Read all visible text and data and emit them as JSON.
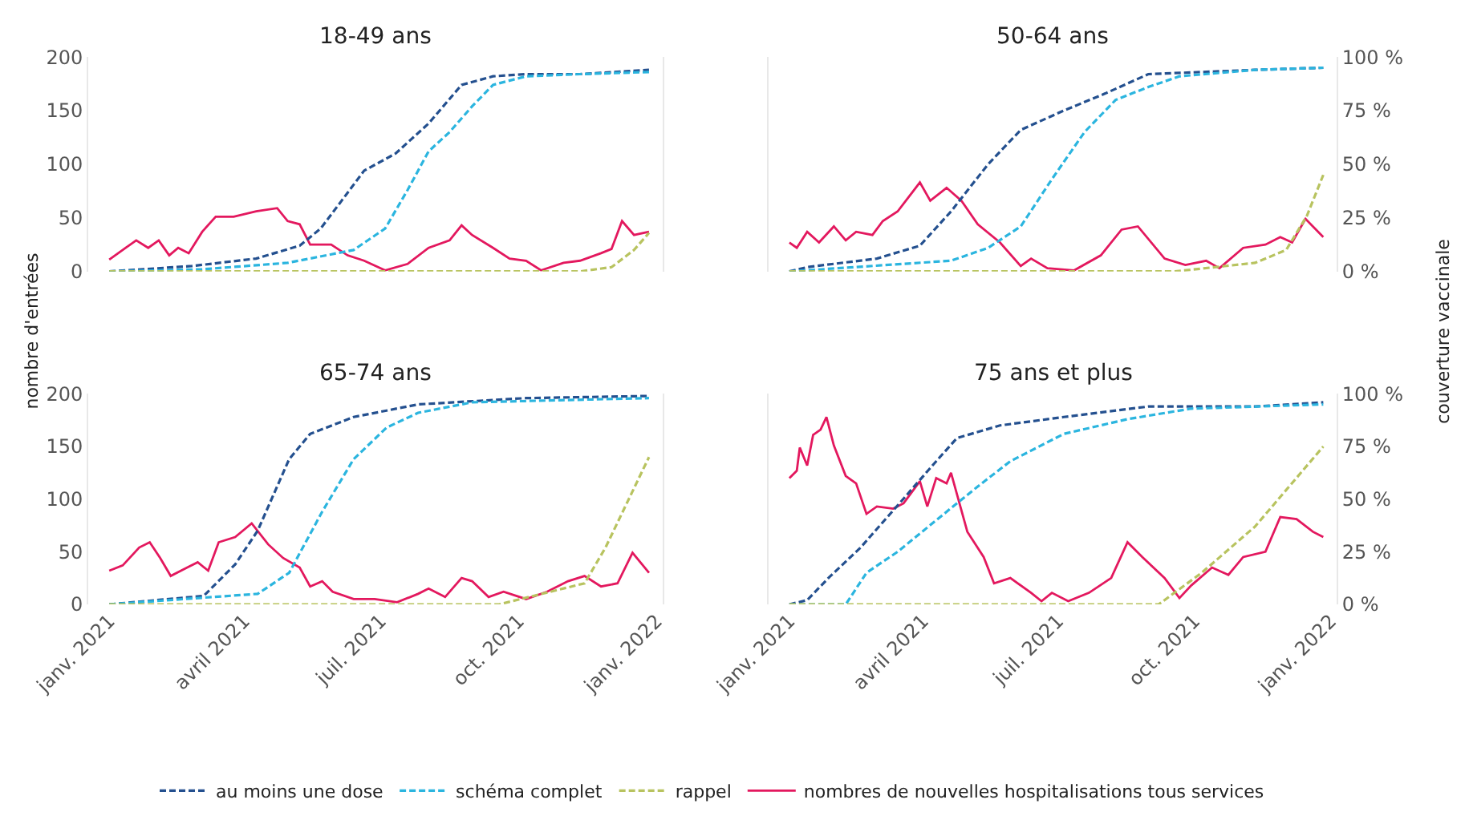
{
  "chart_data": [
    {
      "type": "line",
      "title": "18-49 ans",
      "ylabel": "nombre d'entrées",
      "legend": "bottom",
      "tick_labels": "y",
      "xlim": [
        "2020-12-18",
        "2022-01-05"
      ],
      "ylim": [
        0,
        200
      ],
      "yticks": [
        0,
        50,
        100,
        150,
        200
      ],
      "y2lim": [
        0,
        100
      ],
      "series": [
        {
          "name": "au moins une dose",
          "color": "#24508f",
          "axis": "y2",
          "line_style": "dashed",
          "x": [
            "2021-01-01",
            "2021-02-25",
            "2021-04-09",
            "2021-05-08",
            "2021-05-22",
            "2021-06-05",
            "2021-06-20",
            "2021-07-11",
            "2021-08-02",
            "2021-08-24",
            "2021-09-14",
            "2021-10-06",
            "2021-11-11",
            "2021-12-27"
          ],
          "values": [
            0,
            2.5,
            6,
            12,
            20,
            33,
            47,
            55,
            69,
            87,
            91,
            92,
            92,
            94
          ]
        },
        {
          "name": "schéma complet",
          "color": "#2bb5df",
          "axis": "y2",
          "line_style": "dashed",
          "x": [
            "2021-01-01",
            "2021-03-04",
            "2021-04-30",
            "2021-06-13",
            "2021-07-04",
            "2021-07-19",
            "2021-08-02",
            "2021-08-16",
            "2021-08-31",
            "2021-09-14",
            "2021-10-06",
            "2021-11-11",
            "2021-12-27"
          ],
          "values": [
            0,
            1,
            4,
            10,
            20,
            38,
            56,
            65,
            77,
            87,
            91,
            92,
            93
          ]
        },
        {
          "name": "rappel",
          "color": "#b8c35f",
          "axis": "y2",
          "line_style": "dashed",
          "x": [
            "2021-01-01",
            "2021-11-11",
            "2021-12-02",
            "2021-12-17",
            "2021-12-27"
          ],
          "values": [
            0,
            0,
            2,
            10,
            18
          ]
        },
        {
          "name": "nombres de nouvelles hospitalisations tous services",
          "color": "#e3185e",
          "line_style": "solid",
          "x": [
            "2021-01-01",
            "2021-01-12",
            "2021-01-19",
            "2021-01-27",
            "2021-02-03",
            "2021-02-10",
            "2021-02-16",
            "2021-02-23",
            "2021-03-04",
            "2021-03-13",
            "2021-03-25",
            "2021-04-09",
            "2021-04-23",
            "2021-04-30",
            "2021-05-08",
            "2021-05-15",
            "2021-05-29",
            "2021-06-09",
            "2021-06-20",
            "2021-07-04",
            "2021-07-19",
            "2021-08-02",
            "2021-08-16",
            "2021-08-24",
            "2021-08-31",
            "2021-09-14",
            "2021-09-25",
            "2021-10-06",
            "2021-10-16",
            "2021-10-31",
            "2021-11-11",
            "2021-11-25",
            "2021-12-02",
            "2021-12-09",
            "2021-12-17",
            "2021-12-27"
          ],
          "values": [
            11,
            22,
            29,
            22,
            29,
            15,
            22,
            17,
            37,
            51,
            51,
            56,
            59,
            47,
            44,
            25,
            25,
            15,
            10,
            1,
            7,
            22,
            29,
            43,
            34,
            22,
            12,
            10,
            1,
            8,
            10,
            17,
            21,
            47,
            34,
            37
          ]
        }
      ]
    },
    {
      "type": "line",
      "title": "50-64 ans",
      "y2label": "couverture vaccinale",
      "legend": "bottom",
      "tick_labels": "y2",
      "xlim": [
        "2020-12-18",
        "2022-01-05"
      ],
      "ylim": [
        0,
        200
      ],
      "y2lim": [
        0,
        100
      ],
      "y2ticks": [
        {
          "value": 0,
          "label": "0 %"
        },
        {
          "value": 25,
          "label": "25 %"
        },
        {
          "value": 50,
          "label": "50 %"
        },
        {
          "value": 75,
          "label": "75 %"
        },
        {
          "value": 100,
          "label": "100 %"
        }
      ],
      "series": [
        {
          "color": "#24508f",
          "axis": "y2",
          "line_style": "dashed",
          "x": [
            "2021-01-01",
            "2021-01-13",
            "2021-03-01",
            "2021-03-30",
            "2021-04-20",
            "2021-05-15",
            "2021-06-06",
            "2021-07-05",
            "2021-08-02",
            "2021-08-31",
            "2021-10-06",
            "2021-11-11",
            "2021-12-27"
          ],
          "values": [
            0,
            2,
            6,
            12,
            28,
            50,
            66,
            75,
            83,
            92,
            93,
            94,
            95
          ]
        },
        {
          "color": "#2bb5df",
          "axis": "y2",
          "line_style": "dashed",
          "x": [
            "2021-01-01",
            "2021-04-20",
            "2021-05-15",
            "2021-06-06",
            "2021-06-27",
            "2021-07-19",
            "2021-08-09",
            "2021-08-31",
            "2021-09-21",
            "2021-11-11",
            "2021-12-27"
          ],
          "values": [
            0,
            5,
            11,
            21,
            43,
            65,
            80,
            86,
            91,
            94,
            95
          ]
        },
        {
          "color": "#b8c35f",
          "axis": "y2",
          "line_style": "dashed",
          "x": [
            "2021-01-01",
            "2021-09-18",
            "2021-11-11",
            "2021-12-02",
            "2021-12-16",
            "2021-12-27"
          ],
          "values": [
            0,
            0,
            4,
            10,
            26,
            45
          ]
        },
        {
          "color": "#e3185e",
          "line_style": "solid",
          "x": [
            "2021-01-01",
            "2021-01-06",
            "2021-01-13",
            "2021-01-21",
            "2021-01-31",
            "2021-02-08",
            "2021-02-15",
            "2021-02-26",
            "2021-03-05",
            "2021-03-15",
            "2021-03-30",
            "2021-04-06",
            "2021-04-17",
            "2021-04-27",
            "2021-05-08",
            "2021-05-23",
            "2021-06-06",
            "2021-06-13",
            "2021-06-24",
            "2021-07-12",
            "2021-07-30",
            "2021-08-13",
            "2021-08-24",
            "2021-09-11",
            "2021-09-25",
            "2021-10-09",
            "2021-10-18",
            "2021-11-03",
            "2021-11-18",
            "2021-11-28",
            "2021-12-06",
            "2021-12-15",
            "2021-12-27"
          ],
          "values": [
            27,
            22,
            37,
            27,
            42,
            29,
            37,
            34,
            47,
            56,
            83,
            66,
            78,
            66,
            44,
            27,
            5,
            12,
            3,
            1,
            15,
            39,
            42,
            12,
            6,
            10,
            3,
            22,
            25,
            32,
            27,
            49,
            32
          ]
        }
      ]
    },
    {
      "type": "line",
      "title": "65-74 ans",
      "legend": "bottom",
      "tick_labels": "xy",
      "xlim": [
        "2020-12-18",
        "2022-01-05"
      ],
      "xticks": [
        {
          "value": "2021-01-01",
          "label": "janv. 2021"
        },
        {
          "value": "2021-04-01",
          "label": "avril 2021"
        },
        {
          "value": "2021-07-01",
          "label": "juil. 2021"
        },
        {
          "value": "2021-10-01",
          "label": "oct. 2021"
        },
        {
          "value": "2022-01-01",
          "label": "janv. 2022"
        }
      ],
      "ylim": [
        0,
        200
      ],
      "yticks": [
        0,
        50,
        100,
        150,
        200
      ],
      "y2lim": [
        0,
        100
      ],
      "series": [
        {
          "color": "#24508f",
          "axis": "y2",
          "line_style": "dashed",
          "x": [
            "2021-01-01",
            "2021-03-05",
            "2021-03-26",
            "2021-04-10",
            "2021-05-01",
            "2021-05-15",
            "2021-06-13",
            "2021-07-26",
            "2021-10-06",
            "2021-12-27"
          ],
          "values": [
            0,
            4,
            19,
            35,
            69,
            81,
            89,
            95,
            98,
            99
          ]
        },
        {
          "color": "#2bb5df",
          "axis": "y2",
          "line_style": "dashed",
          "x": [
            "2021-01-01",
            "2021-04-10",
            "2021-05-01",
            "2021-05-23",
            "2021-06-13",
            "2021-07-05",
            "2021-07-26",
            "2021-08-31",
            "2021-12-27"
          ],
          "values": [
            0,
            5,
            15,
            44,
            69,
            84,
            91,
            96,
            98
          ]
        },
        {
          "color": "#b8c35f",
          "axis": "y2",
          "line_style": "dashed",
          "x": [
            "2021-01-01",
            "2021-09-18",
            "2021-11-14",
            "2021-11-28",
            "2021-12-27"
          ],
          "values": [
            0,
            0,
            10,
            27,
            70
          ]
        },
        {
          "color": "#e3185e",
          "line_style": "solid",
          "x": [
            "2021-01-01",
            "2021-01-10",
            "2021-01-21",
            "2021-01-28",
            "2021-02-04",
            "2021-02-11",
            "2021-02-22",
            "2021-03-01",
            "2021-03-08",
            "2021-03-15",
            "2021-03-26",
            "2021-04-06",
            "2021-04-17",
            "2021-04-27",
            "2021-05-08",
            "2021-05-15",
            "2021-05-23",
            "2021-05-30",
            "2021-06-13",
            "2021-06-27",
            "2021-07-12",
            "2021-07-26",
            "2021-08-02",
            "2021-08-13",
            "2021-08-24",
            "2021-08-31",
            "2021-09-11",
            "2021-09-21",
            "2021-10-06",
            "2021-10-20",
            "2021-11-03",
            "2021-11-14",
            "2021-11-25",
            "2021-12-06",
            "2021-12-16",
            "2021-12-27"
          ],
          "values": [
            32,
            37,
            54,
            59,
            44,
            27,
            35,
            40,
            32,
            59,
            64,
            77,
            57,
            44,
            35,
            17,
            22,
            12,
            5,
            5,
            2,
            10,
            15,
            7,
            25,
            22,
            7,
            12,
            5,
            12,
            22,
            27,
            17,
            20,
            49,
            30
          ]
        }
      ]
    },
    {
      "type": "line",
      "title": "75 ans et plus",
      "legend": "bottom",
      "tick_labels": "xy2",
      "xlim": [
        "2020-12-18",
        "2022-01-05"
      ],
      "xticks": [
        {
          "value": "2021-01-01",
          "label": "janv. 2021"
        },
        {
          "value": "2021-04-01",
          "label": "avril 2021"
        },
        {
          "value": "2021-07-01",
          "label": "juil. 2021"
        },
        {
          "value": "2021-10-01",
          "label": "oct. 2021"
        },
        {
          "value": "2022-01-01",
          "label": "janv. 2022"
        }
      ],
      "ylim": [
        0,
        200
      ],
      "y2lim": [
        0,
        100
      ],
      "y2ticks": [
        {
          "value": 0,
          "label": "0 %"
        },
        {
          "value": 25,
          "label": "25 %"
        },
        {
          "value": 50,
          "label": "50 %"
        },
        {
          "value": 75,
          "label": "75 %"
        },
        {
          "value": 100,
          "label": "100 %"
        }
      ],
      "series": [
        {
          "color": "#24508f",
          "axis": "y2",
          "line_style": "dashed",
          "x": [
            "2021-01-01",
            "2021-01-13",
            "2021-01-28",
            "2021-02-18",
            "2021-03-15",
            "2021-04-10",
            "2021-04-24",
            "2021-05-23",
            "2021-07-05",
            "2021-08-31",
            "2021-11-11",
            "2021-12-27"
          ],
          "values": [
            0,
            2,
            13,
            27,
            47,
            68,
            79,
            85,
            89,
            94,
            94,
            96
          ]
        },
        {
          "color": "#2bb5df",
          "axis": "y2",
          "line_style": "dashed",
          "x": [
            "2021-01-01",
            "2021-02-08",
            "2021-02-22",
            "2021-03-15",
            "2021-04-17",
            "2021-05-08",
            "2021-05-30",
            "2021-07-05",
            "2021-08-17",
            "2021-09-29",
            "2021-12-27"
          ],
          "values": [
            0,
            0,
            15,
            25,
            44,
            56,
            68,
            81,
            88,
            93,
            95
          ]
        },
        {
          "color": "#b8c35f",
          "axis": "y2",
          "line_style": "dashed",
          "x": [
            "2021-01-01",
            "2021-09-07",
            "2021-10-06",
            "2021-11-11",
            "2021-12-27"
          ],
          "values": [
            0,
            0,
            15,
            37,
            75
          ]
        },
        {
          "color": "#e3185e",
          "line_style": "solid",
          "x": [
            "2021-01-01",
            "2021-01-06",
            "2021-01-08",
            "2021-01-13",
            "2021-01-17",
            "2021-01-22",
            "2021-01-26",
            "2021-01-31",
            "2021-02-08",
            "2021-02-15",
            "2021-02-22",
            "2021-03-01",
            "2021-03-12",
            "2021-03-19",
            "2021-03-30",
            "2021-04-04",
            "2021-04-10",
            "2021-04-17",
            "2021-04-20",
            "2021-05-01",
            "2021-05-12",
            "2021-05-19",
            "2021-05-30",
            "2021-06-13",
            "2021-06-20",
            "2021-06-27",
            "2021-07-08",
            "2021-07-22",
            "2021-08-06",
            "2021-08-17",
            "2021-08-27",
            "2021-09-11",
            "2021-09-21",
            "2021-09-29",
            "2021-10-13",
            "2021-10-24",
            "2021-11-03",
            "2021-11-18",
            "2021-11-28",
            "2021-12-09",
            "2021-12-20",
            "2021-12-27"
          ],
          "values": [
            120,
            127,
            149,
            132,
            161,
            166,
            178,
            151,
            122,
            115,
            86,
            93,
            91,
            96,
            117,
            93,
            120,
            115,
            125,
            69,
            45,
            20,
            25,
            11,
            3,
            11,
            3,
            11,
            25,
            59,
            45,
            25,
            6,
            18,
            35,
            28,
            45,
            50,
            83,
            81,
            69,
            64
          ]
        }
      ]
    }
  ]
}
